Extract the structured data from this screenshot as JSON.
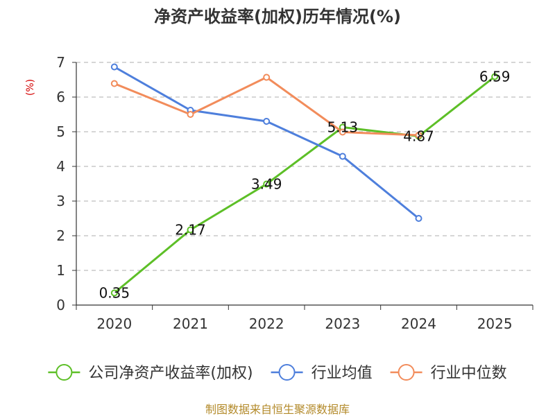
{
  "chart_data": {
    "type": "line",
    "title": "净资产收益率(加权)历年情况(%)",
    "ylabel": "(%)",
    "xlabel": "",
    "categories": [
      "2020",
      "2021",
      "2022",
      "2023",
      "2024",
      "2025"
    ],
    "ylim": [
      0,
      7
    ],
    "yticks": [
      0,
      1,
      2,
      3,
      4,
      5,
      6,
      7
    ],
    "grid": true,
    "legend_position": "bottom",
    "series": [
      {
        "name": "公司净资产收益率(加权)",
        "values": [
          0.35,
          2.17,
          3.49,
          5.13,
          4.87,
          6.59
        ],
        "labels": [
          "0.35",
          "2.17",
          "3.49",
          "5.13",
          "4.87",
          "6.59"
        ],
        "color": "#5dbf27"
      },
      {
        "name": "行业均值",
        "values": [
          6.87,
          5.62,
          5.3,
          4.29,
          2.5,
          null
        ],
        "color": "#4e7fdc"
      },
      {
        "name": "行业中位数",
        "values": [
          6.39,
          5.5,
          6.57,
          4.99,
          4.9,
          null
        ],
        "color": "#f28c5b"
      }
    ]
  },
  "source_text": "制图数据来自恒生聚源数据库"
}
